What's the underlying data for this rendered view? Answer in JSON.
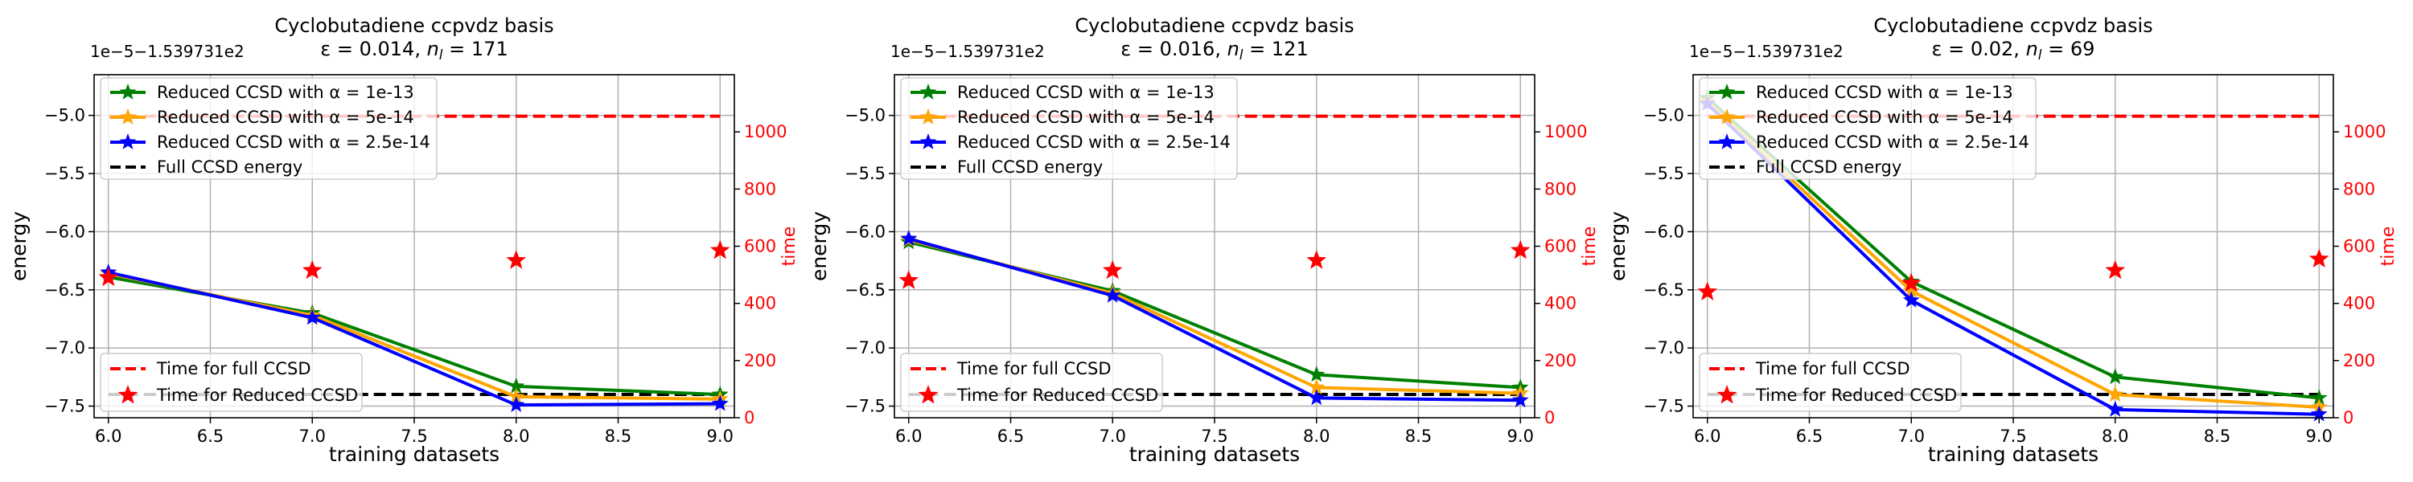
{
  "chart_data": [
    {
      "type": "line",
      "title": "Cyclobutadiene ccpvdz basis",
      "subtitle_prefix": "ε = 0.014, ",
      "subtitle_nl": "171",
      "offset_label": "1e−5−1.539731e2",
      "xlabel": "training datasets",
      "ylabel": "energy",
      "y2label": "time",
      "xlim": [
        5.93,
        9.07
      ],
      "ylim": [
        -7.6,
        -4.65
      ],
      "y2lim": [
        0,
        1200
      ],
      "x_ticks": [
        "6.0",
        "6.5",
        "7.0",
        "7.5",
        "8.0",
        "8.5",
        "9.0"
      ],
      "y_ticks": [
        "−5.0",
        "−5.5",
        "−6.0",
        "−6.5",
        "−7.0",
        "−7.5"
      ],
      "y2_ticks": [
        "0",
        "200",
        "400",
        "600",
        "800",
        "1000"
      ],
      "x": [
        6,
        7,
        8,
        9
      ],
      "series": [
        {
          "name": "Reduced CCSD with α = 1e-13",
          "color": "#008000",
          "values": [
            -6.39,
            -6.7,
            -7.33,
            -7.4
          ]
        },
        {
          "name": "Reduced CCSD with α = 5e-14",
          "color": "#ffa500",
          "values": [
            -6.36,
            -6.72,
            -7.42,
            -7.44
          ]
        },
        {
          "name": "Reduced CCSD with α = 2.5e-14",
          "color": "#0000ff",
          "values": [
            -6.35,
            -6.74,
            -7.49,
            -7.48
          ]
        }
      ],
      "full_ccsd": {
        "name": "Full CCSD energy",
        "color": "#000000",
        "value": -7.4
      },
      "full_time": {
        "name": "Time for full CCSD",
        "color": "#ff0000",
        "value": 1055
      },
      "reduced_time": {
        "name": "Time for Reduced CCSD",
        "color": "#ff0000",
        "values": [
          490,
          515,
          550,
          585
        ]
      }
    },
    {
      "type": "line",
      "title": "Cyclobutadiene ccpvdz basis",
      "subtitle_prefix": "ε = 0.016, ",
      "subtitle_nl": "121",
      "offset_label": "1e−5−1.539731e2",
      "xlabel": "training datasets",
      "ylabel": "energy",
      "y2label": "time",
      "xlim": [
        5.93,
        9.07
      ],
      "ylim": [
        -7.6,
        -4.65
      ],
      "y2lim": [
        0,
        1200
      ],
      "x_ticks": [
        "6.0",
        "6.5",
        "7.0",
        "7.5",
        "8.0",
        "8.5",
        "9.0"
      ],
      "y_ticks": [
        "−5.0",
        "−5.5",
        "−6.0",
        "−6.5",
        "−7.0",
        "−7.5"
      ],
      "y2_ticks": [
        "0",
        "200",
        "400",
        "600",
        "800",
        "1000"
      ],
      "x": [
        6,
        7,
        8,
        9
      ],
      "series": [
        {
          "name": "Reduced CCSD with α = 1e-13",
          "color": "#008000",
          "values": [
            -6.09,
            -6.51,
            -7.23,
            -7.34
          ]
        },
        {
          "name": "Reduced CCSD with α = 5e-14",
          "color": "#ffa500",
          "values": [
            -6.07,
            -6.53,
            -7.34,
            -7.39
          ]
        },
        {
          "name": "Reduced CCSD with α = 2.5e-14",
          "color": "#0000ff",
          "values": [
            -6.06,
            -6.55,
            -7.43,
            -7.45
          ]
        }
      ],
      "full_ccsd": {
        "name": "Full CCSD energy",
        "color": "#000000",
        "value": -7.4
      },
      "full_time": {
        "name": "Time for full CCSD",
        "color": "#ff0000",
        "value": 1055
      },
      "reduced_time": {
        "name": "Time for Reduced CCSD",
        "color": "#ff0000",
        "values": [
          480,
          515,
          550,
          585
        ]
      }
    },
    {
      "type": "line",
      "title": "Cyclobutadiene ccpvdz basis",
      "subtitle_prefix": "ε = 0.02, ",
      "subtitle_nl": "69",
      "offset_label": "1e−5−1.539731e2",
      "xlabel": "training datasets",
      "ylabel": "energy",
      "y2label": "time",
      "xlim": [
        5.93,
        9.07
      ],
      "ylim": [
        -7.6,
        -4.65
      ],
      "y2lim": [
        0,
        1200
      ],
      "x_ticks": [
        "6.0",
        "6.5",
        "7.0",
        "7.5",
        "8.0",
        "8.5",
        "9.0"
      ],
      "y_ticks": [
        "−5.0",
        "−5.5",
        "−6.0",
        "−6.5",
        "−7.0",
        "−7.5"
      ],
      "y2_ticks": [
        "0",
        "200",
        "400",
        "600",
        "800",
        "1000"
      ],
      "x": [
        6,
        7,
        8,
        9
      ],
      "series": [
        {
          "name": "Reduced CCSD with α = 1e-13",
          "color": "#008000",
          "values": [
            -4.85,
            -6.43,
            -7.25,
            -7.43
          ]
        },
        {
          "name": "Reduced CCSD with α = 5e-14",
          "color": "#ffa500",
          "values": [
            -4.88,
            -6.51,
            -7.4,
            -7.51
          ]
        },
        {
          "name": "Reduced CCSD with α = 2.5e-14",
          "color": "#0000ff",
          "values": [
            -4.9,
            -6.59,
            -7.53,
            -7.57
          ]
        }
      ],
      "full_ccsd": {
        "name": "Full CCSD energy",
        "color": "#000000",
        "value": -7.4
      },
      "full_time": {
        "name": "Time for full CCSD",
        "color": "#ff0000",
        "value": 1055
      },
      "reduced_time": {
        "name": "Time for Reduced CCSD",
        "color": "#ff0000",
        "values": [
          440,
          470,
          515,
          555
        ]
      }
    }
  ]
}
